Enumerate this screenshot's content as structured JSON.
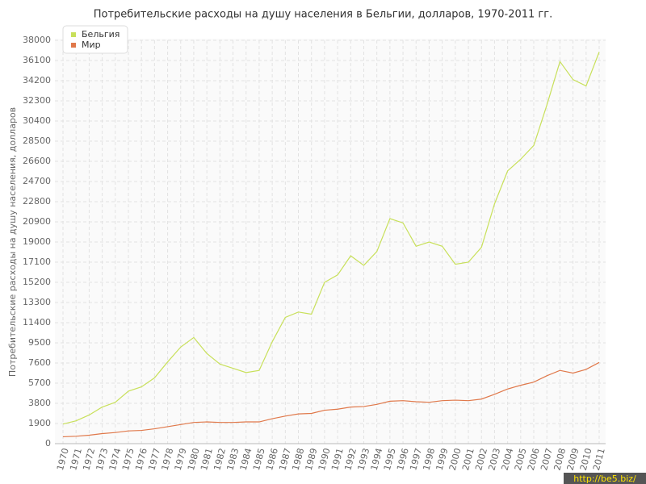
{
  "chart_data": {
    "type": "line",
    "title": "Потребительские расходы на душу населения в Бельгии, долларов, 1970-2011 гг.",
    "y_label": "Потребительские расходы на душу населения, долларов",
    "categories": [
      "1970",
      "1971",
      "1972",
      "1973",
      "1974",
      "1975",
      "1976",
      "1977",
      "1978",
      "1979",
      "1980",
      "1981",
      "1982",
      "1983",
      "1984",
      "1985",
      "1986",
      "1987",
      "1988",
      "1989",
      "1990",
      "1991",
      "1992",
      "1993",
      "1994",
      "1995",
      "1996",
      "1997",
      "1998",
      "1999",
      "2000",
      "2001",
      "2002",
      "2003",
      "2004",
      "2005",
      "2006",
      "2007",
      "2008",
      "2009",
      "2010",
      "2011"
    ],
    "series": [
      {
        "name": "Бельгия",
        "color": "#c8e05a",
        "values": [
          1850,
          2150,
          2700,
          3450,
          3900,
          4950,
          5350,
          6200,
          7700,
          9100,
          10000,
          8500,
          7500,
          7100,
          6700,
          6900,
          9600,
          11900,
          12400,
          12200,
          15200,
          15900,
          17700,
          16800,
          18100,
          21200,
          20800,
          18600,
          19000,
          18600,
          16900,
          17100,
          18500,
          22600,
          25700,
          26800,
          28100,
          31900,
          36000,
          34300,
          33700,
          36900
        ]
      },
      {
        "name": "Мир",
        "color": "#e0784a",
        "values": [
          650,
          700,
          800,
          950,
          1050,
          1200,
          1250,
          1400,
          1600,
          1800,
          2000,
          2050,
          2000,
          2000,
          2050,
          2050,
          2350,
          2600,
          2800,
          2850,
          3150,
          3250,
          3450,
          3500,
          3700,
          4000,
          4050,
          3950,
          3900,
          4050,
          4100,
          4050,
          4200,
          4650,
          5150,
          5500,
          5800,
          6400,
          6900,
          6650,
          7000,
          7650
        ]
      }
    ],
    "ylim": [
      0,
      38000
    ],
    "yticks": [
      0,
      1900,
      3800,
      5700,
      7600,
      9500,
      11400,
      13300,
      15200,
      17100,
      19000,
      20900,
      22800,
      24700,
      26600,
      28500,
      30400,
      32300,
      34200,
      36100,
      38000
    ],
    "grid": true,
    "legend": "top-left",
    "watermark": "http://be5.biz/"
  }
}
